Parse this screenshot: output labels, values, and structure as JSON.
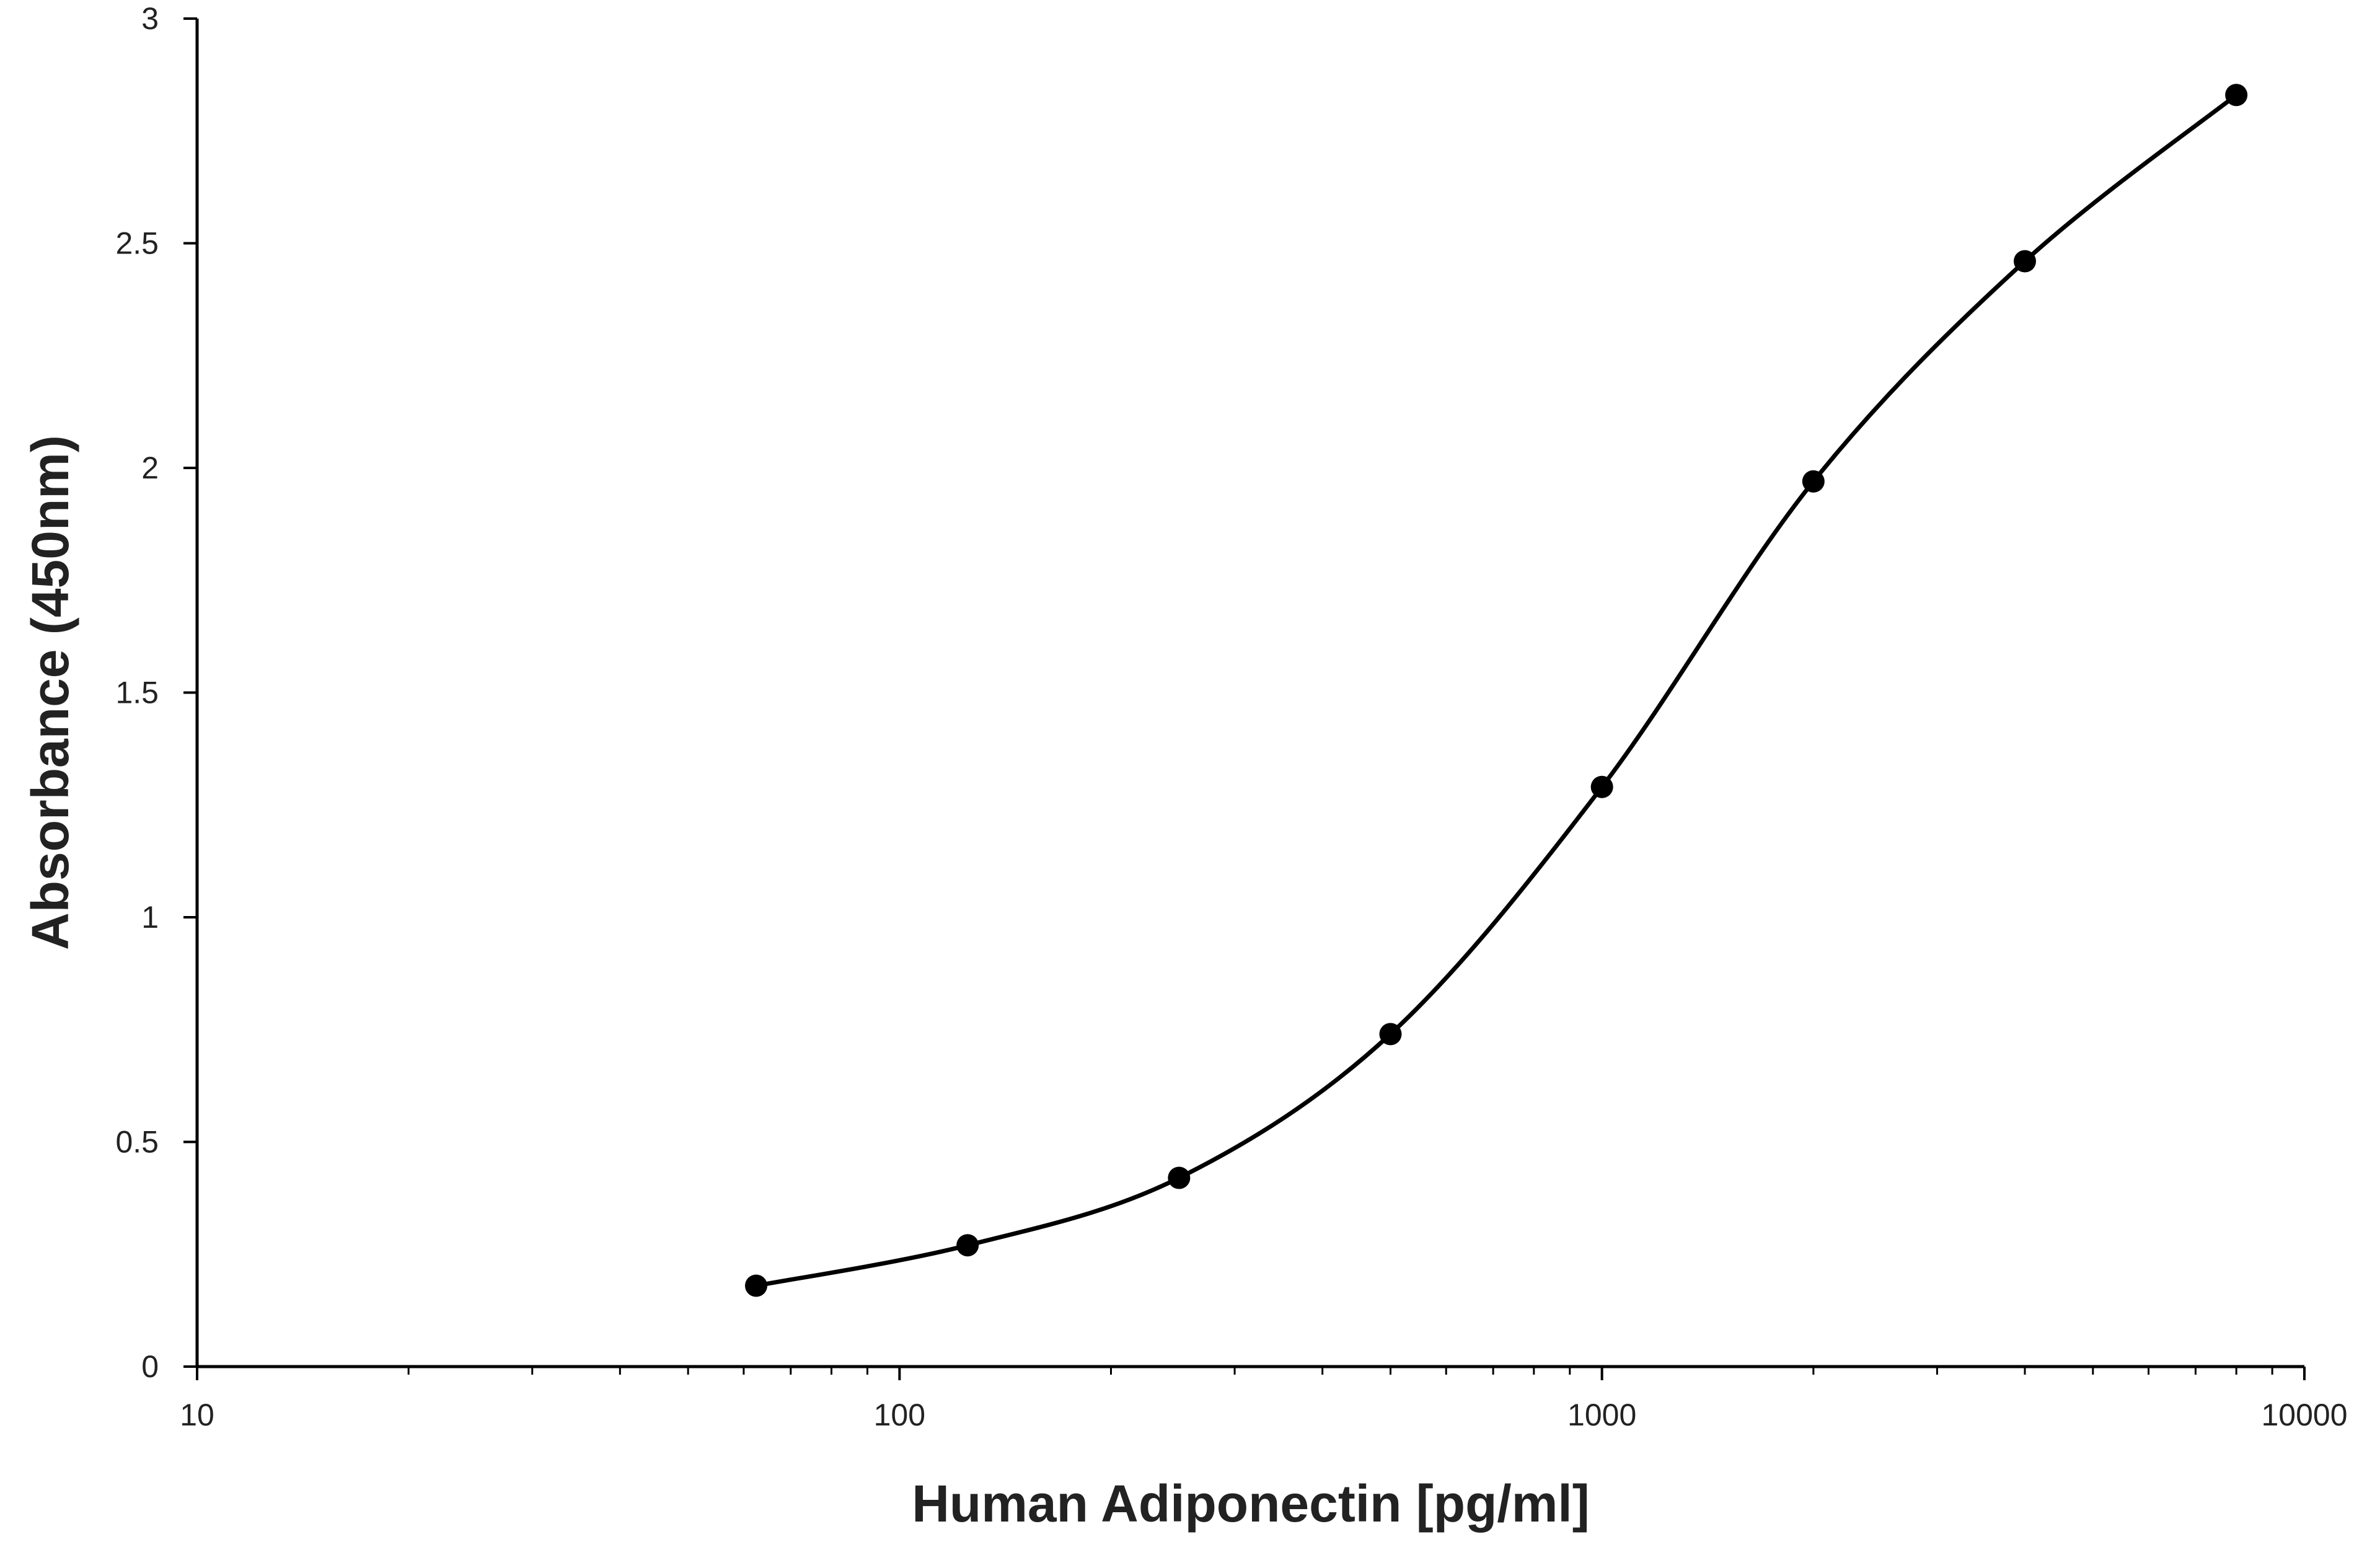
{
  "chart_data": {
    "type": "line",
    "title": "",
    "xlabel": "Human Adiponectin [pg/ml]",
    "ylabel": "Absorbance (450nm)",
    "x_scale": "log",
    "xlim": [
      10,
      10000
    ],
    "ylim": [
      0,
      3
    ],
    "x_ticks": [
      10,
      100,
      1000,
      10000
    ],
    "x_tick_labels": [
      "10",
      "100",
      "1000",
      "10000"
    ],
    "y_ticks": [
      0,
      0.5,
      1,
      1.5,
      2,
      2.5,
      3
    ],
    "y_tick_labels": [
      "0",
      "0.5",
      "1",
      "1.5",
      "2",
      "2.5",
      "3"
    ],
    "grid": false,
    "legend": "none",
    "smooth": true,
    "marker": "circle",
    "color": "#000000",
    "series": [
      {
        "x": [
          62.5,
          125,
          250,
          500,
          1000,
          2000,
          4000,
          8000
        ],
        "y": [
          0.18,
          0.27,
          0.42,
          0.74,
          1.29,
          1.97,
          2.46,
          2.83
        ]
      }
    ]
  }
}
